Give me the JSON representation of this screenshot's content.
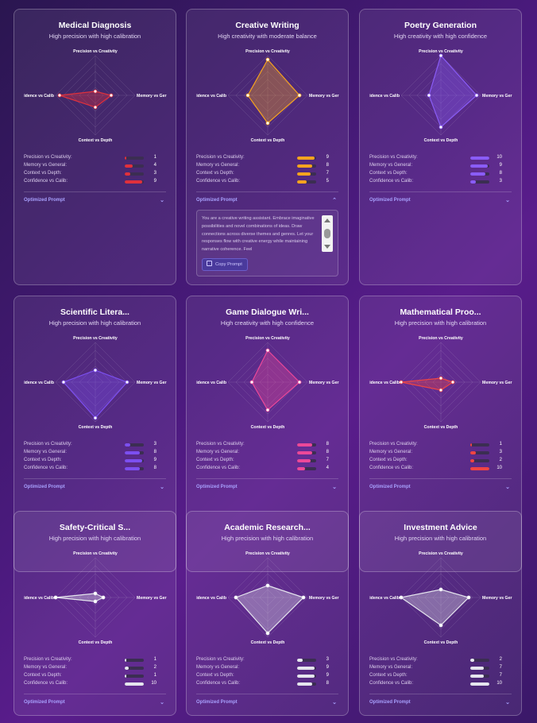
{
  "axes": [
    "Precision vs Creativity",
    "Memory vs General",
    "Context vs Depth",
    "Confidence vs Calib"
  ],
  "axis_labels": {
    "top": "Precision vs Creativity",
    "right": "Memory vs Ger",
    "bottom": "Context vs Depth",
    "left": "idence vs Calib"
  },
  "metric_labels": [
    "Precision vs Creativity:",
    "Memory vs General:",
    "Context vs Depth:",
    "Confidence vs Calib:"
  ],
  "optimized_prompt_label": "Optimized Prompt",
  "cards": [
    {
      "title": "Medical Diagnosis",
      "subtitle": "High precision with high calibration",
      "color": "#e0303c",
      "values": [
        1,
        4,
        3,
        9
      ],
      "expanded": false
    },
    {
      "title": "Creative Writing",
      "subtitle": "High creativity with moderate balance",
      "color": "#f5a31f",
      "values": [
        9,
        8,
        7,
        5
      ],
      "expanded": true,
      "prompt_text": "You are a creative writing assistant. Embrace imaginative possibilities and novel combinations of ideas. Draw connections across diverse themes and genres. Let your responses flow with creative energy while maintaining narrative coherence. Feel",
      "copy_label": "Copy Prompt"
    },
    {
      "title": "Poetry Generation",
      "subtitle": "High creativity with high confidence",
      "color": "#8a5cf6",
      "values": [
        10,
        9,
        8,
        3
      ],
      "expanded": false
    },
    {
      "title": "Scientific Litera...",
      "subtitle": "High precision with high calibration",
      "color": "#7c4ff0",
      "values": [
        3,
        8,
        9,
        8
      ],
      "expanded": false
    },
    {
      "title": "Game Dialogue Wri...",
      "subtitle": "High creativity with high confidence",
      "color": "#ec4899",
      "values": [
        8,
        8,
        7,
        4
      ],
      "expanded": false
    },
    {
      "title": "Mathematical Proo...",
      "subtitle": "High precision with high calibration",
      "color": "#ef4444",
      "values": [
        1,
        3,
        2,
        10
      ],
      "expanded": false
    },
    {
      "title": "Safety-Critical S...",
      "subtitle": "High precision with high calibration",
      "color": "#e5e5ee",
      "values": [
        1,
        2,
        1,
        10
      ],
      "expanded": false
    },
    {
      "title": "Academic Research...",
      "subtitle": "High precision with high calibration",
      "color": "#e5e5ee",
      "values": [
        3,
        9,
        9,
        8
      ],
      "expanded": false
    },
    {
      "title": "Investment Advice",
      "subtitle": "High precision with high calibration",
      "color": "#e5e5ee",
      "values": [
        2,
        7,
        7,
        10
      ],
      "expanded": false
    }
  ]
}
